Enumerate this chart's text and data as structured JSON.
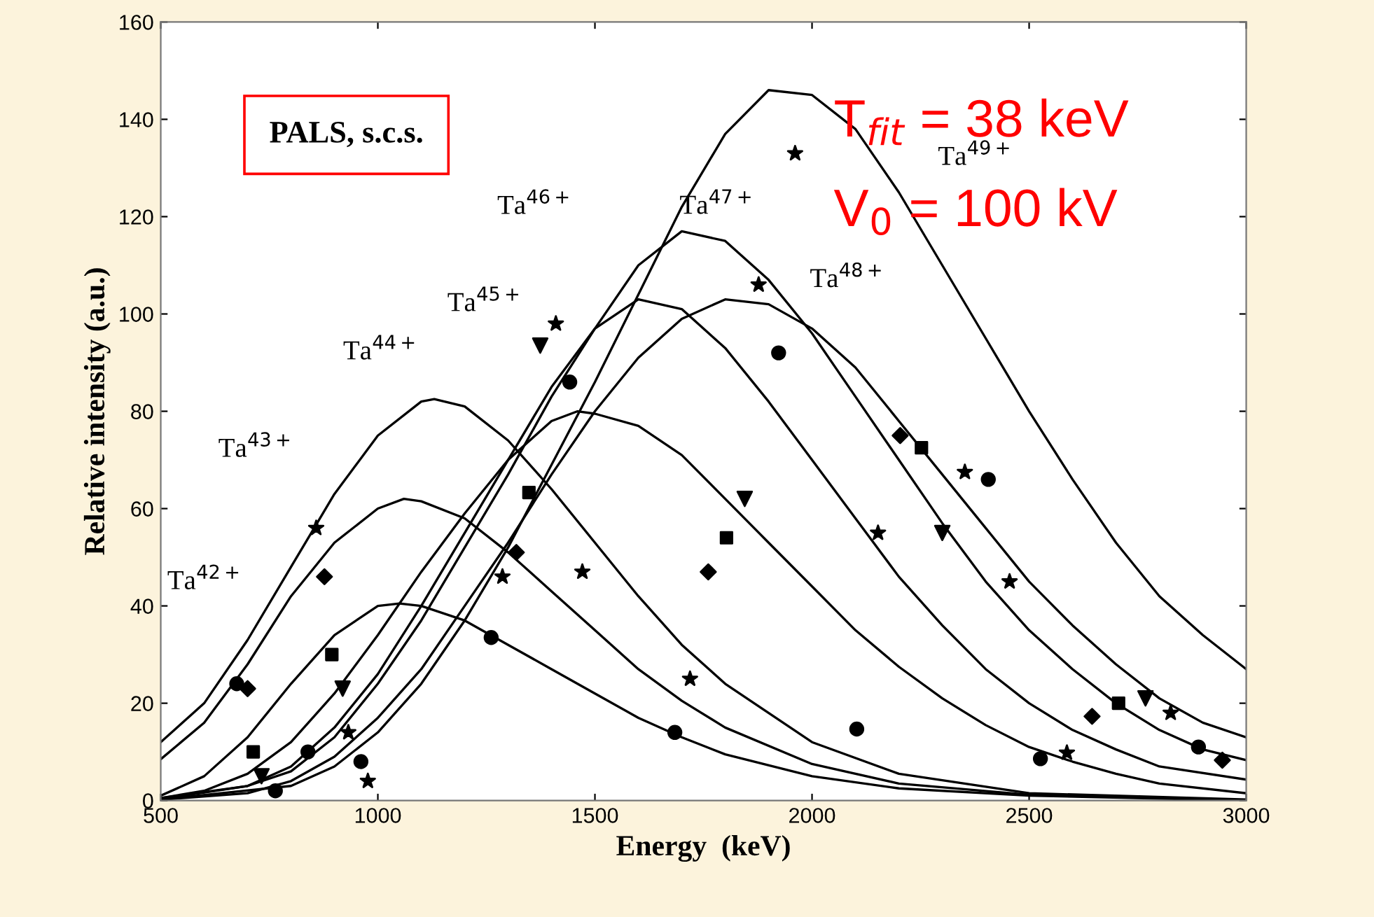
{
  "chart_data": {
    "type": "line",
    "xlabel": "Energy  (keV)",
    "ylabel": "Relative intensity (a.u.)",
    "xlim": [
      500,
      3000
    ],
    "ylim": [
      0,
      160
    ],
    "xticks": [
      500,
      1000,
      1500,
      2000,
      2500,
      3000
    ],
    "yticks": [
      0,
      20,
      40,
      60,
      80,
      100,
      120,
      140,
      160
    ],
    "grid": false,
    "legend": false,
    "series": [
      {
        "color": "#000000",
        "marker": "none",
        "x": [
          500,
          600,
          700,
          800,
          900,
          1000,
          1050,
          1100,
          1200,
          1300,
          1400,
          1500,
          1600,
          1700,
          1800,
          2000,
          2200,
          2500,
          3000
        ],
        "values": [
          1,
          5,
          13,
          24,
          34,
          40,
          40.5,
          40,
          37,
          32,
          27,
          22,
          17,
          13,
          9.5,
          5,
          2.5,
          1,
          0
        ]
      },
      {
        "color": "#000000",
        "marker": "none",
        "x": [
          500,
          600,
          700,
          800,
          900,
          1000,
          1060,
          1100,
          1200,
          1300,
          1400,
          1500,
          1600,
          1700,
          1800,
          2000,
          2200,
          2500,
          3000
        ],
        "values": [
          8.5,
          16,
          28,
          42,
          53,
          60,
          62,
          61.5,
          58,
          51,
          43,
          35,
          27,
          20.5,
          15,
          7.5,
          3.5,
          1.2,
          0.1
        ]
      },
      {
        "color": "#000000",
        "marker": "none",
        "x": [
          500,
          600,
          700,
          800,
          900,
          1000,
          1100,
          1130,
          1200,
          1300,
          1400,
          1500,
          1600,
          1700,
          1800,
          2000,
          2200,
          2500,
          3000
        ],
        "values": [
          12,
          20,
          33,
          48,
          63,
          75,
          82,
          82.5,
          81,
          74,
          64,
          53,
          42,
          32,
          24,
          12,
          5.5,
          1.5,
          0.2
        ]
      },
      {
        "color": "#000000",
        "marker": "none",
        "x": [
          500,
          600,
          700,
          800,
          900,
          1000,
          1100,
          1200,
          1300,
          1400,
          1460,
          1500,
          1600,
          1700,
          1800,
          1900,
          2000,
          2100,
          2200,
          2300,
          2400,
          2500,
          2600,
          2700,
          2800,
          3000
        ],
        "values": [
          0.5,
          2,
          5.5,
          12,
          22,
          34,
          47,
          59,
          70,
          78,
          80,
          79.5,
          77,
          71,
          62,
          53,
          44,
          35,
          27.5,
          21,
          15.5,
          11,
          8,
          5.5,
          3.5,
          1.5
        ]
      },
      {
        "color": "#000000",
        "marker": "none",
        "x": [
          500,
          700,
          800,
          900,
          1000,
          1100,
          1200,
          1300,
          1400,
          1500,
          1600,
          1700,
          1800,
          1900,
          2000,
          2100,
          2200,
          2300,
          2400,
          2500,
          2600,
          2700,
          2800,
          3000
        ],
        "values": [
          0.5,
          3,
          7,
          15,
          26,
          40,
          55,
          70,
          85,
          97,
          103,
          101,
          93,
          82,
          70,
          58,
          46,
          36,
          27,
          20,
          14.5,
          10.5,
          7,
          4.3
        ]
      },
      {
        "color": "#000000",
        "marker": "none",
        "x": [
          500,
          700,
          800,
          900,
          1000,
          1100,
          1200,
          1300,
          1400,
          1500,
          1600,
          1700,
          1800,
          1900,
          2000,
          2100,
          2200,
          2300,
          2400,
          2500,
          2600,
          2700,
          2800,
          2900,
          3000
        ],
        "values": [
          0.3,
          3,
          6,
          13,
          24,
          37,
          52,
          67,
          83,
          97,
          110,
          117,
          115,
          107,
          96,
          83,
          70,
          57,
          45,
          35,
          27,
          20,
          14.5,
          10.5,
          8.3
        ]
      },
      {
        "color": "#000000",
        "marker": "none",
        "x": [
          500,
          700,
          800,
          900,
          1000,
          1100,
          1200,
          1300,
          1400,
          1500,
          1600,
          1700,
          1800,
          1900,
          2000,
          2100,
          2200,
          2300,
          2400,
          2500,
          2600,
          2700,
          2800,
          2900,
          3000
        ],
        "values": [
          0.2,
          1.5,
          4,
          9,
          17,
          27,
          40,
          53,
          67,
          80,
          91,
          99,
          103,
          102,
          97,
          89,
          78,
          67,
          56,
          45,
          36,
          28,
          21,
          16,
          13
        ]
      },
      {
        "color": "#000000",
        "marker": "none",
        "x": [
          500,
          800,
          900,
          1000,
          1100,
          1200,
          1300,
          1400,
          1500,
          1600,
          1700,
          1800,
          1900,
          2000,
          2100,
          2200,
          2300,
          2400,
          2500,
          2600,
          2700,
          2800,
          2900,
          3000
        ],
        "values": [
          0.2,
          3,
          7,
          14,
          24,
          37,
          52,
          69,
          86,
          104,
          122,
          137,
          146,
          145,
          138,
          125,
          110,
          95,
          80,
          66,
          53,
          42,
          34,
          27
        ]
      },
      {
        "type": "scatter",
        "color": "#000000",
        "marker": "circle",
        "x": [
          675,
          839,
          961,
          764,
          1261,
          1442,
          1923,
          1684,
          2103,
          2406,
          2890,
          2526
        ],
        "values": [
          24,
          10,
          8,
          2,
          33.5,
          86,
          92,
          14,
          14.7,
          66,
          11,
          8.6
        ]
      },
      {
        "type": "scatter",
        "color": "#000000",
        "marker": "diamond",
        "x": [
          700,
          877,
          1319,
          2203,
          1761,
          2645,
          2945
        ],
        "values": [
          23,
          46,
          51,
          75,
          47,
          17.3,
          8.3
        ]
      },
      {
        "type": "scatter",
        "color": "#000000",
        "marker": "square",
        "x": [
          713,
          894,
          1348,
          2252,
          1803,
          2706
        ],
        "values": [
          10,
          30,
          63.3,
          72.5,
          54,
          20
        ]
      },
      {
        "type": "scatter",
        "color": "#000000",
        "marker": "triangle",
        "x": [
          732,
          919,
          1374,
          1845,
          2300,
          2768
        ],
        "values": [
          5,
          23,
          93.5,
          62,
          55,
          21
        ]
      },
      {
        "type": "scatter",
        "color": "#000000",
        "marker": "star",
        "x": [
          977,
          858,
          932,
          1287,
          1410,
          1961,
          1877,
          2152,
          1471,
          1719,
          2352,
          2455,
          2826,
          2587
        ],
        "values": [
          4,
          56,
          14,
          46,
          98,
          133,
          106,
          55,
          47,
          25,
          67.5,
          45,
          18,
          9.8
        ]
      }
    ],
    "annotations": [
      "Ta$^{42+}$",
      "Ta$^{43+}$",
      "Ta$^{44+}$",
      "Ta$^{45+}$",
      "Ta$^{46+}$",
      "Ta$^{47+}$",
      "Ta$^{48+}$",
      "Ta$^{49+}$",
      "PALS, s.c.s.",
      "T$_{fit}$ = 38 keV",
      "V$_{0}$ = 100 kV"
    ]
  }
}
